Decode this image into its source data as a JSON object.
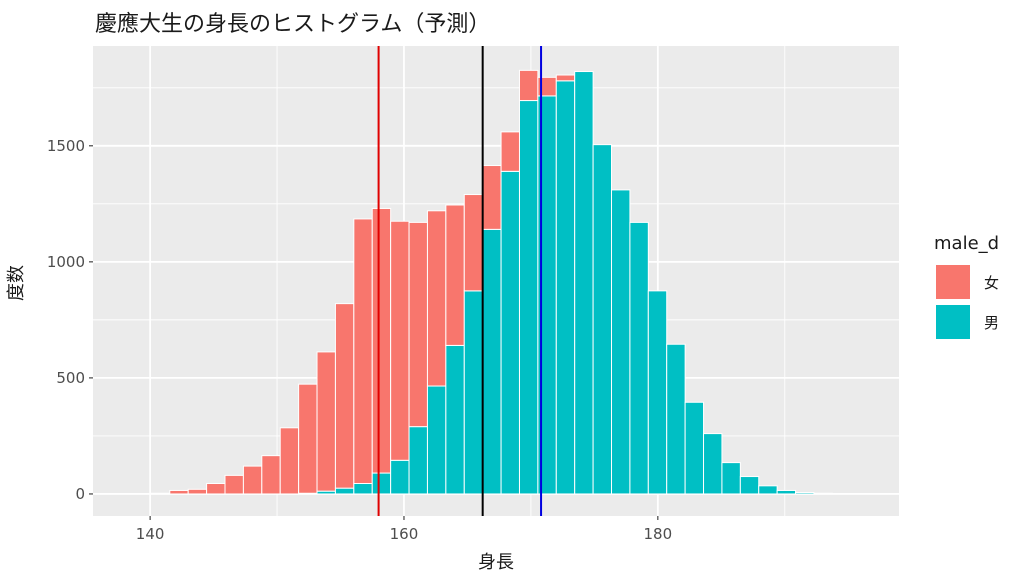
{
  "chart_data": {
    "type": "bar",
    "title": "慶應大生の身長のヒストグラム（予測）",
    "xlabel": "身長",
    "ylabel": "度数",
    "xlim": [
      135.5,
      199
    ],
    "ylim": [
      -95,
      1930
    ],
    "x_ticks": [
      140,
      160,
      180
    ],
    "y_ticks": [
      0,
      500,
      1000,
      1500
    ],
    "grid": true,
    "legend": {
      "title": "male_d",
      "placement": "right"
    },
    "stacked": true,
    "bin_width": 1.45,
    "bin_left_edges": [
      138.65,
      140.1,
      141.55,
      143.0,
      144.45,
      145.9,
      147.35,
      148.8,
      150.25,
      151.7,
      153.15,
      154.6,
      156.05,
      157.5,
      158.95,
      160.4,
      161.85,
      163.3,
      164.75,
      166.2,
      167.65,
      169.1,
      170.55,
      172.0,
      173.45,
      174.9,
      176.35,
      177.8,
      179.25,
      180.7,
      182.15,
      183.6,
      185.05,
      186.5,
      187.95,
      189.4,
      190.85,
      192.3,
      193.75,
      195.2
    ],
    "series": [
      {
        "name": "女",
        "color": "#F8766D",
        "values": [
          1,
          3,
          15,
          20,
          45,
          80,
          120,
          165,
          285,
          470,
          600,
          795,
          1140,
          1140,
          1030,
          880,
          755,
          605,
          415,
          275,
          170,
          130,
          80,
          25,
          0,
          0,
          0,
          0,
          0,
          0,
          0,
          0,
          0,
          0,
          0,
          0,
          0,
          0,
          0,
          0
        ]
      },
      {
        "name": "男",
        "color": "#00BFC4",
        "values": [
          0,
          0,
          0,
          0,
          0,
          0,
          0,
          0,
          0,
          3,
          12,
          25,
          45,
          90,
          145,
          290,
          465,
          640,
          875,
          1140,
          1390,
          1695,
          1715,
          1780,
          1820,
          1505,
          1310,
          1170,
          875,
          645,
          395,
          260,
          135,
          75,
          35,
          15,
          6,
          3,
          1,
          0
        ]
      }
    ],
    "reference_lines": [
      {
        "x": 158.0,
        "color": "#E00000"
      },
      {
        "x": 166.2,
        "color": "#000000"
      },
      {
        "x": 170.8,
        "color": "#0000E0"
      }
    ]
  }
}
